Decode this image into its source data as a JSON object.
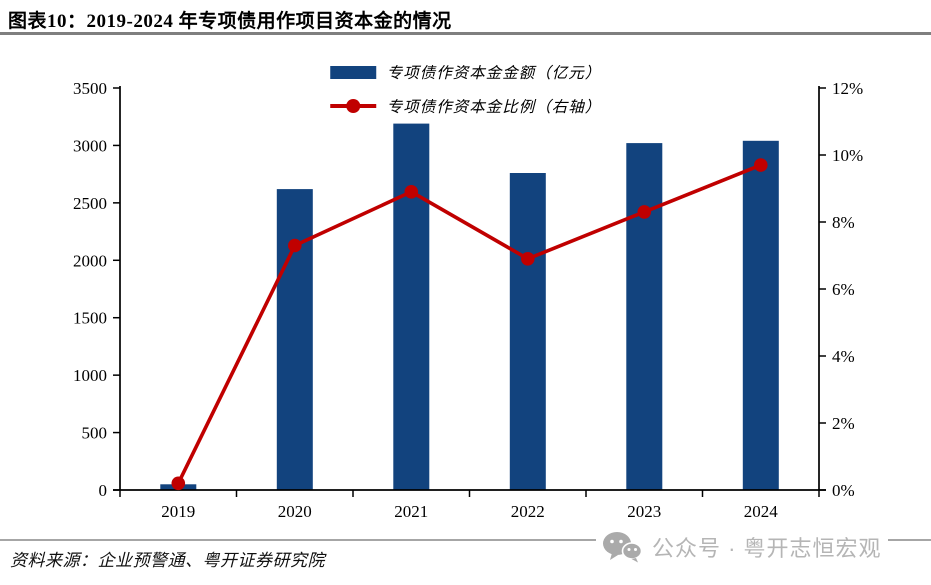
{
  "header": {
    "title": "图表10：2019-2024 年专项债用作项目资本金的情况"
  },
  "footer": {
    "source": "资料来源：企业预警通、粤开证券研究院",
    "watermark_text": "公众号 · 粤开志恒宏观",
    "watermark_icon": "wechat-icon",
    "watermark_color": "#b5b5b5"
  },
  "chart_data": {
    "type": "bar",
    "subtype": "bar+line dual-axis combo",
    "categories": [
      "2019",
      "2020",
      "2021",
      "2022",
      "2023",
      "2024"
    ],
    "series": [
      {
        "name": "专项债作资本金金额（亿元）",
        "type": "bar",
        "axis": "left",
        "color": "#12437E",
        "values": [
          50,
          2620,
          3190,
          2760,
          3020,
          3040
        ]
      },
      {
        "name": "专项债作资本金比例（右轴）",
        "type": "line",
        "axis": "right",
        "color": "#C00000",
        "marker": "circle",
        "values": [
          0.2,
          7.3,
          8.9,
          6.9,
          8.3,
          9.7
        ]
      }
    ],
    "left_axis": {
      "min": 0,
      "max": 3500,
      "step": 500,
      "ticks": [
        "0",
        "500",
        "1000",
        "1500",
        "2000",
        "2500",
        "3000",
        "3500"
      ]
    },
    "right_axis": {
      "min": 0,
      "max": 12,
      "step": 2,
      "ticks": [
        "0%",
        "2%",
        "4%",
        "6%",
        "8%",
        "10%",
        "12%"
      ],
      "unit": "%"
    },
    "legend_position": "top-center",
    "grid": false
  }
}
